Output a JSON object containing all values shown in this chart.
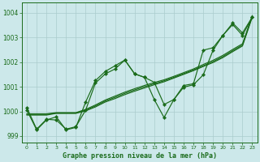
{
  "background_color": "#cce8ea",
  "grid_color": "#aacccc",
  "line_color": "#1a6b1a",
  "title": "Graphe pression niveau de la mer (hPa)",
  "xlim": [
    -0.5,
    23.5
  ],
  "ylim": [
    998.75,
    1004.4
  ],
  "yticks": [
    999,
    1000,
    1001,
    1002,
    1003,
    1004
  ],
  "xticks": [
    0,
    1,
    2,
    3,
    4,
    5,
    6,
    7,
    8,
    9,
    10,
    11,
    12,
    13,
    14,
    15,
    16,
    17,
    18,
    19,
    20,
    21,
    22,
    23
  ],
  "trend1": [
    999.85,
    999.85,
    999.85,
    999.92,
    999.92,
    999.92,
    1000.02,
    1000.18,
    1000.38,
    1000.52,
    1000.68,
    1000.82,
    1000.95,
    1001.08,
    1001.2,
    1001.35,
    1001.5,
    1001.65,
    1001.82,
    1001.98,
    1002.18,
    1002.42,
    1002.65,
    1003.82
  ],
  "trend2": [
    999.88,
    999.88,
    999.88,
    999.93,
    999.93,
    999.93,
    1000.05,
    1000.22,
    1000.42,
    1000.57,
    1000.73,
    1000.87,
    1001.0,
    1001.12,
    1001.24,
    1001.38,
    1001.53,
    1001.68,
    1001.85,
    1002.02,
    1002.22,
    1002.46,
    1002.69,
    1003.85
  ],
  "trend3": [
    999.9,
    999.9,
    999.9,
    999.95,
    999.95,
    999.95,
    1000.08,
    1000.26,
    1000.46,
    1000.62,
    1000.78,
    1000.92,
    1001.05,
    1001.17,
    1001.28,
    1001.42,
    1001.57,
    1001.72,
    1001.9,
    1002.07,
    1002.27,
    1002.51,
    1002.74,
    1003.88
  ],
  "zigzag1": [
    1000.15,
    999.28,
    999.68,
    999.65,
    999.28,
    999.38,
    1000.05,
    1001.15,
    1001.52,
    1001.72,
    1002.08,
    1001.52,
    1001.38,
    1001.18,
    1000.28,
    1000.48,
    1000.98,
    1001.08,
    1001.48,
    1002.48,
    1003.08,
    1003.52,
    1003.08,
    1003.82
  ],
  "zigzag2": [
    1000.05,
    999.25,
    999.65,
    999.78,
    999.25,
    999.35,
    1000.38,
    1001.25,
    1001.62,
    1001.85,
    1002.08,
    1001.52,
    1001.38,
    1000.48,
    999.75,
    1000.48,
    1001.05,
    1001.12,
    1002.48,
    1002.58,
    1003.08,
    1003.58,
    1003.18,
    1003.82
  ]
}
